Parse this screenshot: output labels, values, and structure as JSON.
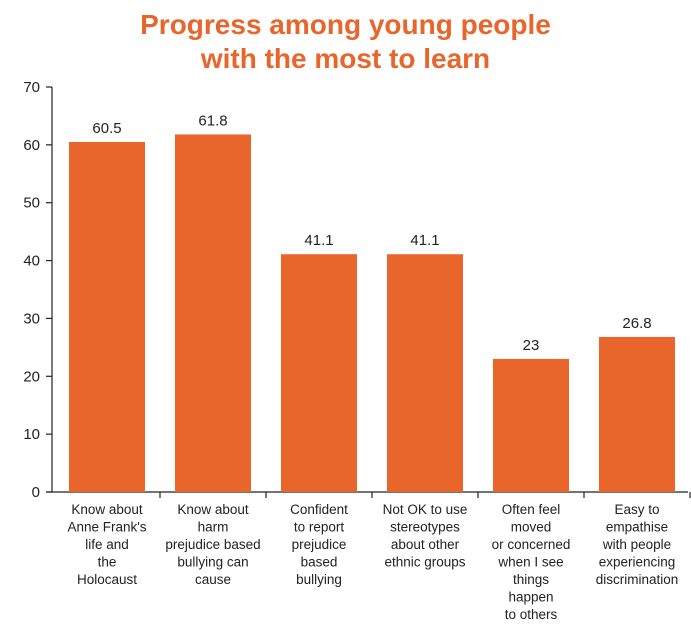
{
  "chart_data": {
    "type": "bar",
    "title_lines": [
      "Progress among young people",
      "with the most to learn"
    ],
    "categories": [
      [
        "Know about",
        "Anne Frank's",
        "life and",
        "the",
        "Holocaust"
      ],
      [
        "Know about",
        "harm",
        "prejudice based",
        "bullying can",
        "cause"
      ],
      [
        "Confident",
        "to report",
        "prejudice",
        "based",
        "bullying"
      ],
      [
        "Not OK to use",
        "stereotypes",
        "about other",
        "ethnic groups"
      ],
      [
        "Often feel",
        "moved",
        "or concerned",
        "when I see",
        "things",
        "happen",
        "to others"
      ],
      [
        "Easy to",
        "empathise",
        "with people",
        "experiencing",
        "discrimination"
      ]
    ],
    "values": [
      60.5,
      61.8,
      41.1,
      41.1,
      23,
      26.8
    ],
    "data_labels": [
      "60.5",
      "61.8",
      "41.1",
      "41.1",
      "23",
      "26.8"
    ],
    "ylim": [
      0,
      70
    ],
    "yticks": [
      0,
      10,
      20,
      30,
      40,
      50,
      60,
      70
    ],
    "bar_color": "#e8652b",
    "grid": false
  }
}
